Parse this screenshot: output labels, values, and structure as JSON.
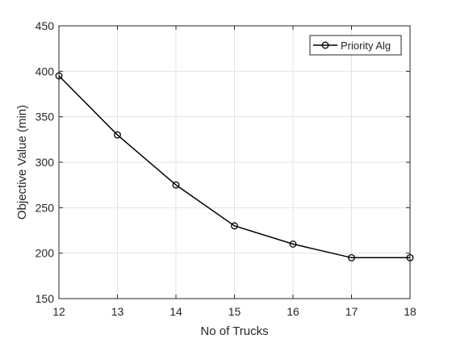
{
  "chart_data": {
    "type": "line",
    "title": "",
    "xlabel": "No of Trucks",
    "ylabel": "Objective Value (min)",
    "xlim": [
      12,
      18
    ],
    "ylim": [
      150,
      450
    ],
    "x_ticks": [
      12,
      13,
      14,
      15,
      16,
      17,
      18
    ],
    "y_ticks": [
      150,
      200,
      250,
      300,
      350,
      400,
      450
    ],
    "grid": true,
    "legend_position": "top-right",
    "series": [
      {
        "name": "Priority Alg",
        "marker": "circle",
        "color": "#000000",
        "x": [
          12,
          13,
          14,
          15,
          16,
          17,
          18
        ],
        "y": [
          395,
          330,
          275,
          230,
          210,
          195,
          195
        ]
      }
    ]
  },
  "colors": {
    "grid": "#e3e3e3",
    "axis": "#262626",
    "series": "#000000"
  }
}
